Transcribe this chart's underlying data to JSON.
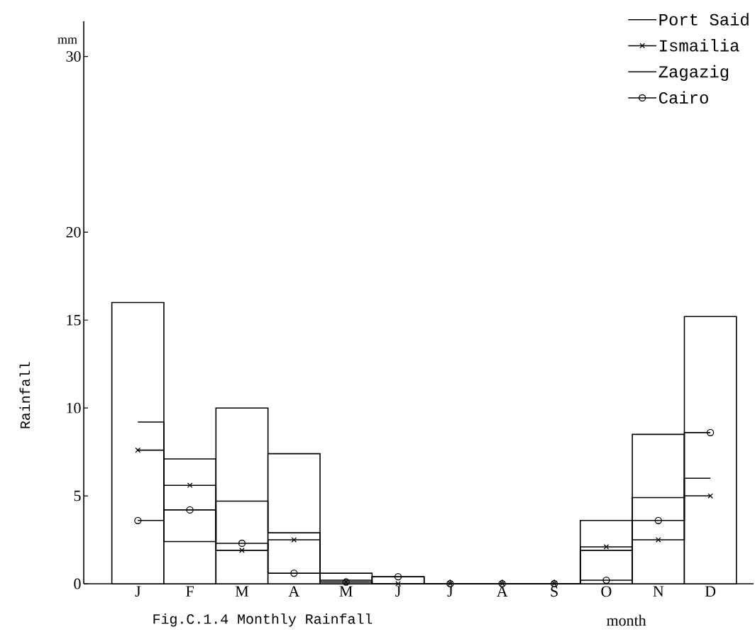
{
  "chart_data": {
    "type": "step",
    "categories": [
      "J",
      "F",
      "M",
      "A",
      "M",
      "J",
      "J",
      "A",
      "S",
      "O",
      "N",
      "D"
    ],
    "series": [
      {
        "name": "Port Said",
        "type": "bar",
        "color": "#000000",
        "values": [
          16.0,
          7.1,
          10.0,
          7.4,
          0.6,
          0.4,
          0,
          0,
          0,
          3.6,
          8.5,
          15.2
        ]
      },
      {
        "name": "Ismailia",
        "color": "#000000",
        "marker": "cross",
        "values": [
          7.6,
          5.6,
          1.9,
          2.5,
          0.1,
          0,
          0,
          0,
          0,
          2.1,
          2.5,
          5.0
        ]
      },
      {
        "name": "Zagazig",
        "color": "#000000",
        "marker": "none",
        "values": [
          9.2,
          2.4,
          4.7,
          2.9,
          0.2,
          0,
          0,
          0,
          0,
          1.9,
          4.9,
          6.0
        ]
      },
      {
        "name": "Cairo",
        "color": "#000000",
        "marker": "circle",
        "values": [
          3.6,
          4.2,
          2.3,
          0.6,
          0.1,
          0.4,
          0,
          0,
          0,
          0.2,
          3.6,
          8.6
        ]
      }
    ],
    "ylim": [
      0,
      32
    ],
    "yticks": [
      0,
      5,
      10,
      15,
      20,
      30
    ],
    "ylabel": "Rainfall",
    "xlabel": "month",
    "legend": "top right",
    "annotations": [
      "mm",
      "Fig.C.1.4 Monthly Rainfall"
    ]
  }
}
